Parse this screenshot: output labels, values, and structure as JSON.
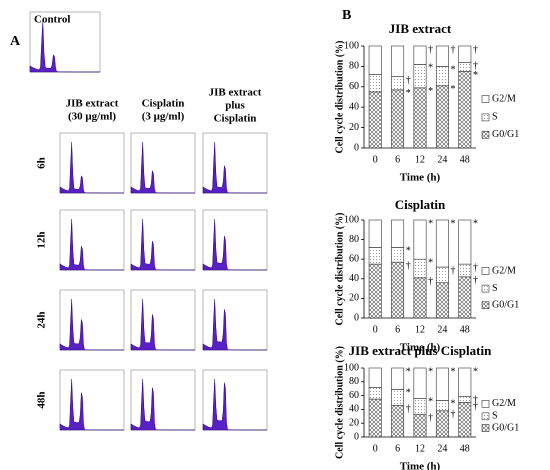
{
  "panel_a": {
    "label": "A",
    "control": "Control",
    "columns": [
      [
        "JIB extract",
        "(30 μg/ml)"
      ],
      [
        "Cisplatin",
        "(3 μg/ml)"
      ],
      [
        "JIB extract",
        "plus",
        "Cisplatin"
      ]
    ],
    "rows": [
      "6h",
      "12h",
      "24h",
      "48h"
    ]
  },
  "panel_b_label": "B",
  "chart_data": [
    {
      "type": "bar",
      "title": "JIB extract",
      "ylabel": "Cell cycle distribution (%)",
      "xlabel": "Time (h)",
      "categories": [
        "0",
        "6",
        "12",
        "24",
        "48"
      ],
      "stacked": true,
      "ylim": [
        0,
        100
      ],
      "yticks": [
        0,
        20,
        40,
        60,
        80,
        100
      ],
      "series": [
        {
          "name": "G0/G1",
          "color": "#ffffff",
          "pattern": "crosshatch",
          "values": [
            55,
            57,
            59,
            61,
            75
          ]
        },
        {
          "name": "S",
          "color": "#ffffff",
          "pattern": "dots",
          "values": [
            17,
            13,
            23,
            19,
            9
          ]
        },
        {
          "name": "G2/M",
          "color": "#ffffff",
          "pattern": "none",
          "values": [
            28,
            30,
            18,
            20,
            16
          ]
        }
      ],
      "annotations": [
        {
          "category": "6",
          "series": "G0/G1",
          "text": "*"
        },
        {
          "category": "6",
          "series": "S",
          "text": "†"
        },
        {
          "category": "12",
          "series": "G0/G1",
          "text": "*"
        },
        {
          "category": "12",
          "series": "S",
          "text": "*"
        },
        {
          "category": "12",
          "series": "G2/M",
          "text": "†"
        },
        {
          "category": "24",
          "series": "G0/G1",
          "text": "*"
        },
        {
          "category": "24",
          "series": "S",
          "text": "*"
        },
        {
          "category": "24",
          "series": "G2/M",
          "text": "†"
        },
        {
          "category": "48",
          "series": "G0/G1",
          "text": "*"
        },
        {
          "category": "48",
          "series": "S",
          "text": "†"
        },
        {
          "category": "48",
          "series": "G2/M",
          "text": "†"
        }
      ]
    },
    {
      "type": "bar",
      "title": "Cisplatin",
      "ylabel": "Cell cycle distribution (%)",
      "xlabel": "Time (h)",
      "categories": [
        "0",
        "6",
        "12",
        "24",
        "48"
      ],
      "stacked": true,
      "ylim": [
        0,
        100
      ],
      "yticks": [
        0,
        20,
        40,
        60,
        80,
        100
      ],
      "series": [
        {
          "name": "G0/G1",
          "color": "#ffffff",
          "pattern": "crosshatch",
          "values": [
            55,
            57,
            41,
            36,
            42
          ]
        },
        {
          "name": "S",
          "color": "#ffffff",
          "pattern": "dots",
          "values": [
            17,
            15,
            19,
            16,
            13
          ]
        },
        {
          "name": "G2/M",
          "color": "#ffffff",
          "pattern": "none",
          "values": [
            28,
            28,
            40,
            48,
            45
          ]
        }
      ],
      "annotations": [
        {
          "category": "6",
          "series": "G0/G1",
          "text": "†"
        },
        {
          "category": "6",
          "series": "S",
          "text": "*"
        },
        {
          "category": "12",
          "series": "G0/G1",
          "text": "†"
        },
        {
          "category": "12",
          "series": "S",
          "text": "*"
        },
        {
          "category": "12",
          "series": "G2/M",
          "text": "*"
        },
        {
          "category": "24",
          "series": "S",
          "text": "†"
        },
        {
          "category": "24",
          "series": "G2/M",
          "text": "*"
        },
        {
          "category": "48",
          "series": "G0/G1",
          "text": "†"
        },
        {
          "category": "48",
          "series": "S",
          "text": "†"
        },
        {
          "category": "48",
          "series": "G2/M",
          "text": "*"
        }
      ]
    },
    {
      "type": "bar",
      "title": "JIB extract plus Cisplatin",
      "ylabel": "Cell cycle distribution (%)",
      "xlabel": "Time (h)",
      "categories": [
        "0",
        "6",
        "12",
        "24",
        "48"
      ],
      "stacked": true,
      "ylim": [
        0,
        100
      ],
      "yticks": [
        0,
        20,
        40,
        60,
        80,
        100
      ],
      "series": [
        {
          "name": "G0/G1",
          "color": "#ffffff",
          "pattern": "crosshatch",
          "values": [
            55,
            46,
            33,
            38,
            50
          ]
        },
        {
          "name": "S",
          "color": "#ffffff",
          "pattern": "dots",
          "values": [
            17,
            23,
            23,
            15,
            9
          ]
        },
        {
          "name": "G2/M",
          "color": "#ffffff",
          "pattern": "none",
          "values": [
            28,
            31,
            44,
            47,
            41
          ]
        }
      ],
      "annotations": [
        {
          "category": "6",
          "series": "G0/G1",
          "text": "†"
        },
        {
          "category": "6",
          "series": "S",
          "text": "*"
        },
        {
          "category": "6",
          "series": "G2/M",
          "text": "*"
        },
        {
          "category": "12",
          "series": "G0/G1",
          "text": "†"
        },
        {
          "category": "12",
          "series": "S",
          "text": "*"
        },
        {
          "category": "12",
          "series": "G2/M",
          "text": "*"
        },
        {
          "category": "24",
          "series": "G0/G1",
          "text": "†"
        },
        {
          "category": "24",
          "series": "S",
          "text": "*"
        },
        {
          "category": "24",
          "series": "G2/M",
          "text": "*"
        },
        {
          "category": "48",
          "series": "G0/G1",
          "text": "†"
        },
        {
          "category": "48",
          "series": "S",
          "text": "†"
        },
        {
          "category": "48",
          "series": "G2/M",
          "text": "*"
        }
      ]
    }
  ]
}
